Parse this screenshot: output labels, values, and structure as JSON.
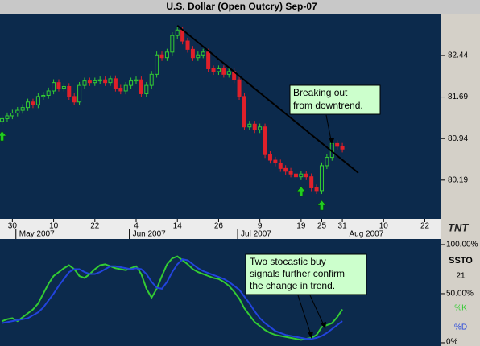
{
  "chart_data": [
    {
      "type": "candlestick",
      "title": "U.S. Dollar (Open Outcry) Sep-07",
      "open": [
        81.25,
        81.3,
        81.35,
        81.4,
        81.45,
        81.5,
        81.6,
        81.55,
        81.7,
        81.72,
        81.8,
        81.95,
        81.85,
        81.88,
        81.7,
        81.6,
        81.9,
        81.98,
        81.95,
        81.98,
        82.0,
        81.95,
        82.02,
        81.85,
        81.8,
        81.9,
        81.98,
        82.0,
        81.75,
        81.9,
        82.1,
        82.45,
        82.4,
        82.5,
        82.8,
        82.9,
        82.7,
        82.55,
        82.4,
        82.45,
        82.5,
        82.2,
        82.15,
        82.2,
        82.1,
        82.15,
        82.0,
        81.7,
        81.15,
        81.2,
        81.1,
        81.15,
        80.65,
        80.55,
        80.5,
        80.4,
        80.35,
        80.3,
        80.25,
        80.3,
        80.25,
        80.05,
        80.0,
        80.45,
        80.6,
        80.85,
        80.8
      ],
      "high": [
        81.36,
        81.41,
        81.46,
        81.51,
        81.56,
        81.66,
        81.66,
        81.76,
        81.78,
        81.86,
        82.01,
        82.01,
        81.94,
        81.94,
        81.76,
        81.96,
        82.04,
        82.04,
        82.04,
        82.06,
        82.06,
        82.08,
        82.08,
        81.91,
        81.96,
        82.04,
        82.06,
        82.06,
        81.96,
        82.16,
        82.51,
        82.51,
        82.56,
        82.86,
        82.96,
        82.96,
        82.76,
        82.61,
        82.51,
        82.56,
        82.56,
        82.26,
        82.26,
        82.26,
        82.21,
        82.21,
        82.06,
        81.76,
        81.26,
        81.26,
        81.21,
        81.21,
        80.71,
        80.61,
        80.56,
        80.46,
        80.41,
        80.36,
        80.36,
        80.36,
        80.31,
        80.11,
        80.51,
        80.66,
        80.91,
        80.91,
        80.86
      ],
      "low": [
        81.19,
        81.24,
        81.29,
        81.34,
        81.39,
        81.44,
        81.49,
        81.49,
        81.64,
        81.66,
        81.74,
        81.79,
        81.79,
        81.64,
        81.54,
        81.54,
        81.84,
        81.89,
        81.89,
        81.92,
        81.89,
        81.89,
        81.79,
        81.74,
        81.74,
        81.84,
        81.92,
        81.69,
        81.69,
        81.84,
        82.04,
        82.34,
        82.34,
        82.44,
        82.74,
        82.64,
        82.49,
        82.34,
        82.34,
        82.39,
        82.14,
        82.09,
        82.09,
        82.04,
        82.04,
        81.94,
        81.64,
        81.09,
        81.09,
        81.04,
        81.04,
        80.59,
        80.49,
        80.44,
        80.34,
        80.29,
        80.24,
        80.19,
        80.19,
        80.19,
        79.99,
        79.94,
        79.94,
        80.39,
        80.54,
        80.74,
        80.69
      ],
      "close": [
        81.3,
        81.35,
        81.4,
        81.45,
        81.5,
        81.6,
        81.55,
        81.7,
        81.72,
        81.8,
        81.95,
        81.85,
        81.88,
        81.7,
        81.6,
        81.9,
        81.98,
        81.95,
        81.98,
        82.0,
        81.95,
        82.02,
        81.85,
        81.8,
        81.9,
        81.98,
        82.0,
        81.75,
        81.9,
        82.1,
        82.45,
        82.4,
        82.5,
        82.8,
        82.9,
        82.7,
        82.55,
        82.4,
        82.45,
        82.5,
        82.2,
        82.15,
        82.2,
        82.1,
        82.15,
        82.0,
        81.7,
        81.15,
        81.2,
        81.1,
        81.15,
        80.65,
        80.55,
        80.5,
        80.4,
        80.35,
        80.3,
        80.25,
        80.3,
        80.25,
        80.05,
        80.0,
        80.45,
        80.6,
        80.85,
        80.8,
        80.75
      ],
      "up_color": "#33cc33",
      "down_color": "#e0202a",
      "background": "#0c2a4c",
      "xlim": [
        -0.4,
        85.2
      ],
      "xticks": [
        {
          "value": 2,
          "label": "30"
        },
        {
          "value": 10,
          "label": "10"
        },
        {
          "value": 18,
          "label": "22"
        },
        {
          "value": 26,
          "label": "4"
        },
        {
          "value": 34,
          "label": "14"
        },
        {
          "value": 42,
          "label": "26"
        },
        {
          "value": 50,
          "label": "9"
        },
        {
          "value": 58,
          "label": "19"
        },
        {
          "value": 62,
          "label": "25"
        },
        {
          "value": 66,
          "label": "31"
        },
        {
          "value": 74,
          "label": "10"
        },
        {
          "value": 82,
          "label": "22"
        }
      ],
      "month_labels": [
        {
          "value": 3,
          "label": "May 2007"
        },
        {
          "value": 25,
          "label": "Jun 2007"
        },
        {
          "value": 46,
          "label": "Jul 2007"
        },
        {
          "value": 67,
          "label": "Aug 2007"
        }
      ],
      "ylim": [
        79.49,
        83.18
      ],
      "yticks": [
        82.44,
        81.69,
        80.94,
        80.19
      ],
      "trendline": {
        "x": [
          34,
          69.1
        ],
        "y": [
          82.98,
          80.32
        ],
        "color": "#000000"
      },
      "buy_signals": [
        0,
        58,
        62
      ],
      "signal_color": "#22cc22",
      "annotation": [
        "Breaking out",
        "from downtrend."
      ],
      "logo": "TNT"
    },
    {
      "type": "line",
      "indicator": "SSTO",
      "period": "21",
      "series": [
        {
          "name": "%K",
          "color": "#33cc33",
          "values": [
            22,
            24,
            25,
            22,
            26,
            30,
            34,
            40,
            50,
            60,
            68,
            72,
            76,
            79,
            75,
            68,
            66,
            70,
            75,
            79,
            80,
            78,
            76,
            75,
            74,
            76,
            78,
            70,
            55,
            46,
            55,
            68,
            80,
            86,
            88,
            84,
            80,
            75,
            72,
            70,
            68,
            66,
            65,
            62,
            58,
            52,
            45,
            35,
            28,
            21,
            17,
            13,
            10,
            8,
            7,
            6,
            5,
            4,
            3,
            4,
            5,
            8,
            16,
            18,
            20,
            26,
            34
          ]
        },
        {
          "name": "%D",
          "color": "#2244dd",
          "values": [
            20,
            21,
            22,
            23,
            24,
            25,
            28,
            31,
            36,
            43,
            50,
            58,
            65,
            72,
            75,
            75,
            72,
            70,
            70,
            72,
            75,
            78,
            78,
            77,
            76,
            75,
            76,
            75,
            70,
            62,
            56,
            55,
            62,
            72,
            80,
            85,
            84,
            80,
            76,
            73,
            71,
            69,
            67,
            65,
            62,
            58,
            54,
            47,
            40,
            32,
            25,
            20,
            16,
            12,
            10,
            8,
            7,
            6,
            5,
            4,
            4,
            5,
            7,
            10,
            14,
            18,
            22
          ]
        }
      ],
      "xlim": [
        -0.4,
        85.2
      ],
      "ylim": [
        -3.3,
        105.7
      ],
      "yticks": [
        {
          "value": 100,
          "label": "100.00%"
        },
        {
          "value": 50,
          "label": "50.00%"
        },
        {
          "value": 0,
          "label": "0%"
        }
      ],
      "annotation": [
        "Two stocastic buy",
        "signals further confirm",
        "the change in trend."
      ]
    }
  ]
}
